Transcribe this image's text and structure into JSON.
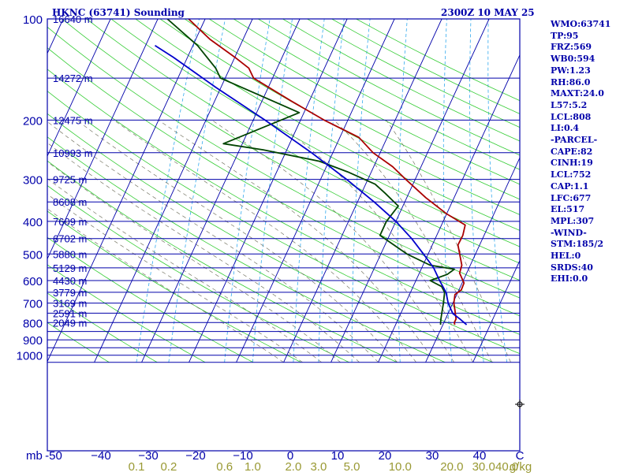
{
  "header": {
    "station_title": "HKNC (63741) Sounding",
    "time_title": "2300Z 10 MAY 25"
  },
  "indices": [
    "WMO:63741",
    "TP:95",
    "FRZ:569",
    "WB0:594",
    "PW:1.23",
    "RH:86.0",
    "MAXT:24.0",
    "L57:5.2",
    "LCL:808",
    "LI:0.4",
    "-PARCEL-",
    "CAPE:82",
    "CINH:19",
    "LCL:752",
    "CAP:1.1",
    "LFC:677",
    "EL:517",
    "MPL:307",
    "-WIND-",
    "STM:185/2",
    "HEL:0",
    "SRDS:40",
    "EHI:0.0"
  ],
  "colors": {
    "background": "#ffffff",
    "frame": "#0000aa",
    "isobar": "#0000aa",
    "isotherm": "#0000aa",
    "dry_adiabat": "#33cc33",
    "moist_adiabat": "#777766",
    "mixing_ratio": "#33aaee",
    "temperature": "#aa0000",
    "dewpoint": "#004400",
    "parcel": "#0000cc",
    "axis_text": "#0000aa",
    "mixing_text": "#999933"
  },
  "chart_data": {
    "type": "line",
    "title": "HKNC (63741) Sounding",
    "subtitle": "2300Z 10 MAY 25",
    "y_axis": {
      "unit": "mb",
      "scale": "log",
      "ticks": [
        100,
        200,
        300,
        400,
        500,
        600,
        700,
        800,
        900,
        1000
      ]
    },
    "x_axis": {
      "unit": "C",
      "ticks": [
        -50,
        -40,
        -30,
        -20,
        -10,
        0,
        10,
        20,
        30,
        40
      ],
      "tick_labels": [
        "-50",
        "−40",
        "−30",
        "−20",
        "−10",
        "0",
        "10",
        "20",
        "30",
        "40"
      ]
    },
    "mixing_ratio_labels": [
      "0.1",
      "0.2",
      "0.6",
      "1.0",
      "2.0",
      "3.0",
      "5.0",
      "10.0",
      "20.0",
      "30.0",
      "40.0"
    ],
    "mixing_ratio_unit": "g/kg",
    "height_labels": [
      {
        "p": 100,
        "label": "16640 m"
      },
      {
        "p": 150,
        "label": "14272 m"
      },
      {
        "p": 200,
        "label": "12475 m"
      },
      {
        "p": 250,
        "label": "10993 m"
      },
      {
        "p": 300,
        "label": "9725 m"
      },
      {
        "p": 350,
        "label": "8608 m"
      },
      {
        "p": 400,
        "label": "7609 m"
      },
      {
        "p": 450,
        "label": "6702 m"
      },
      {
        "p": 500,
        "label": "5880 m"
      },
      {
        "p": 550,
        "label": "5129 m"
      },
      {
        "p": 600,
        "label": "4430 m"
      },
      {
        "p": 650,
        "label": "3779 m"
      },
      {
        "p": 700,
        "label": "3169 m"
      },
      {
        "p": 750,
        "label": "2591 m"
      },
      {
        "p": 800,
        "label": "2049 m"
      }
    ],
    "series": [
      {
        "kind": "temperature",
        "points": [
          [
            812,
            22.5
          ],
          [
            800,
            22.2
          ],
          [
            780,
            22.2
          ],
          [
            730,
            21.0
          ],
          [
            700,
            20.2
          ],
          [
            660,
            19.6
          ],
          [
            640,
            20.5
          ],
          [
            610,
            20.4
          ],
          [
            570,
            18.5
          ],
          [
            540,
            18.2
          ],
          [
            470,
            15.4
          ],
          [
            440,
            15.5
          ],
          [
            410,
            15.0
          ],
          [
            380,
            10.0
          ],
          [
            340,
            4.0
          ],
          [
            300,
            -2.0
          ],
          [
            275,
            -6.0
          ],
          [
            250,
            -11.5
          ],
          [
            225,
            -16.0
          ],
          [
            200,
            -25.0
          ],
          [
            175,
            -34.0
          ],
          [
            150,
            -44.0
          ],
          [
            140,
            -46.0
          ],
          [
            130,
            -50.0
          ],
          [
            115,
            -57.0
          ],
          [
            100,
            -63.5
          ]
        ]
      },
      {
        "kind": "dewpoint",
        "points": [
          [
            812,
            19.5
          ],
          [
            800,
            19.3
          ],
          [
            780,
            19.0
          ],
          [
            740,
            18.5
          ],
          [
            700,
            18.0
          ],
          [
            650,
            17.2
          ],
          [
            625,
            16.0
          ],
          [
            600,
            13.0
          ],
          [
            575,
            16.0
          ],
          [
            555,
            17.0
          ],
          [
            540,
            11.5
          ],
          [
            500,
            5.5
          ],
          [
            440,
            -2.0
          ],
          [
            400,
            -2.0
          ],
          [
            360,
            -1.0
          ],
          [
            330,
            -5.0
          ],
          [
            310,
            -8.0
          ],
          [
            285,
            -15.0
          ],
          [
            265,
            -22.0
          ],
          [
            245,
            -35.0
          ],
          [
            235,
            -44.0
          ],
          [
            190,
            -31.0
          ],
          [
            150,
            -51.0
          ],
          [
            140,
            -53.0
          ],
          [
            120,
            -59.0
          ],
          [
            100,
            -68.0
          ]
        ]
      },
      {
        "kind": "parcel",
        "points": [
          [
            812,
            25.0
          ],
          [
            780,
            23.0
          ],
          [
            752,
            21.0
          ],
          [
            700,
            19.0
          ],
          [
            650,
            17.5
          ],
          [
            600,
            15.0
          ],
          [
            550,
            12.5
          ],
          [
            500,
            9.0
          ],
          [
            450,
            5.0
          ],
          [
            400,
            0.0
          ],
          [
            350,
            -6.5
          ],
          [
            300,
            -14.5
          ],
          [
            250,
            -24.5
          ],
          [
            200,
            -37.5
          ],
          [
            160,
            -51.0
          ],
          [
            130,
            -63.0
          ],
          [
            120,
            -68.0
          ]
        ]
      }
    ]
  }
}
